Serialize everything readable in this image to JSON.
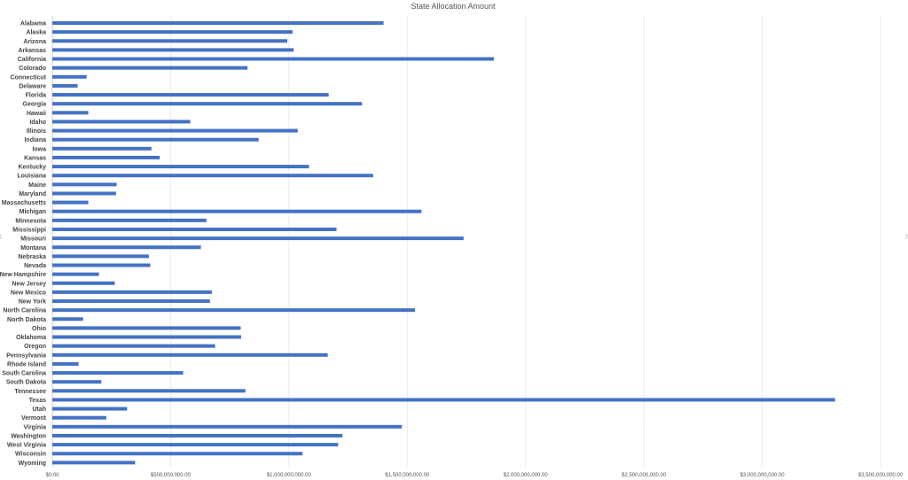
{
  "chart_data": {
    "type": "bar",
    "orientation": "horizontal",
    "title": "State Allocation Amount",
    "xlabel": "",
    "ylabel": "",
    "xlim": [
      0,
      3500000000
    ],
    "grid": true,
    "legend": "none",
    "bar_color": "#4472C4",
    "x_ticks": [
      "$0.00",
      "$500,000,000.00",
      "$1,000,000,000.00",
      "$1,500,000,000.00",
      "$2,000,000,000.00",
      "$2,500,000,000.00",
      "$3,000,000,000.00",
      "$3,500,000,000.00"
    ],
    "categories": [
      "Alabama",
      "Alaska",
      "Arizona",
      "Arkansas",
      "California",
      "Colorado",
      "Connecticut",
      "Delaware",
      "Florida",
      "Georgia",
      "Hawaii",
      "Idaho",
      "Illinois",
      "Indiana",
      "Iowa",
      "Kansas",
      "Kentucky",
      "Louisiana",
      "Maine",
      "Maryland",
      "Massachusetts",
      "Michigan",
      "Minnesota",
      "Mississippi",
      "Missouri",
      "Montana",
      "Nebraska",
      "Nevada",
      "New Hampshire",
      "New Jersey",
      "New Mexico",
      "New York",
      "North Carolina",
      "North Dakota",
      "Ohio",
      "Oklahoma",
      "Oregon",
      "Pennsylvania",
      "Rhode Island",
      "South Carolina",
      "South Dakota",
      "Tennessee",
      "Texas",
      "Utah",
      "Vermont",
      "Virginia",
      "Washington",
      "West Virginia",
      "Wisconsin",
      "Wyoming"
    ],
    "values": [
      1400000000,
      1015000000,
      993000000,
      1020000000,
      1866000000,
      825000000,
      145000000,
      107000000,
      1168000000,
      1309000000,
      152000000,
      583000000,
      1037000000,
      872000000,
      419000000,
      454000000,
      1085000000,
      1356000000,
      272000000,
      269000000,
      152000000,
      1560000000,
      651000000,
      1201000000,
      1738000000,
      628000000,
      408000000,
      414000000,
      197000000,
      264000000,
      674000000,
      666000000,
      1533000000,
      130000000,
      796000000,
      798000000,
      688000000,
      1164000000,
      111000000,
      553000000,
      207000000,
      816000000,
      3308000000,
      316000000,
      228000000,
      1477000000,
      1226000000,
      1208000000,
      1057000000,
      350000000
    ]
  }
}
